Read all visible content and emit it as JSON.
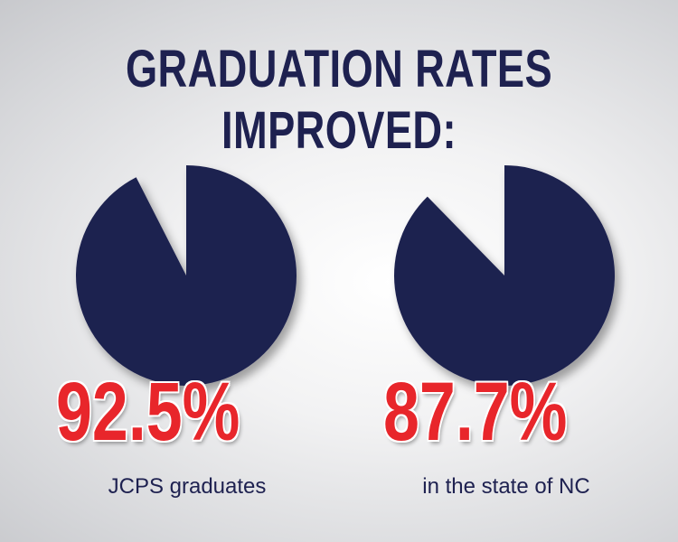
{
  "title_line1": "GRADUATION RATES",
  "title_line2": "IMPROVED:",
  "chart_data": [
    {
      "type": "pie",
      "value": 92.5,
      "label": "92.5%",
      "caption": "JCPS graduates",
      "color": "#1e2150"
    },
    {
      "type": "pie",
      "value": 87.7,
      "label": "87.7%",
      "caption": "in the state of NC",
      "color": "#1e2150"
    }
  ],
  "colors": {
    "navy": "#1e2150",
    "red": "#e8262b"
  }
}
